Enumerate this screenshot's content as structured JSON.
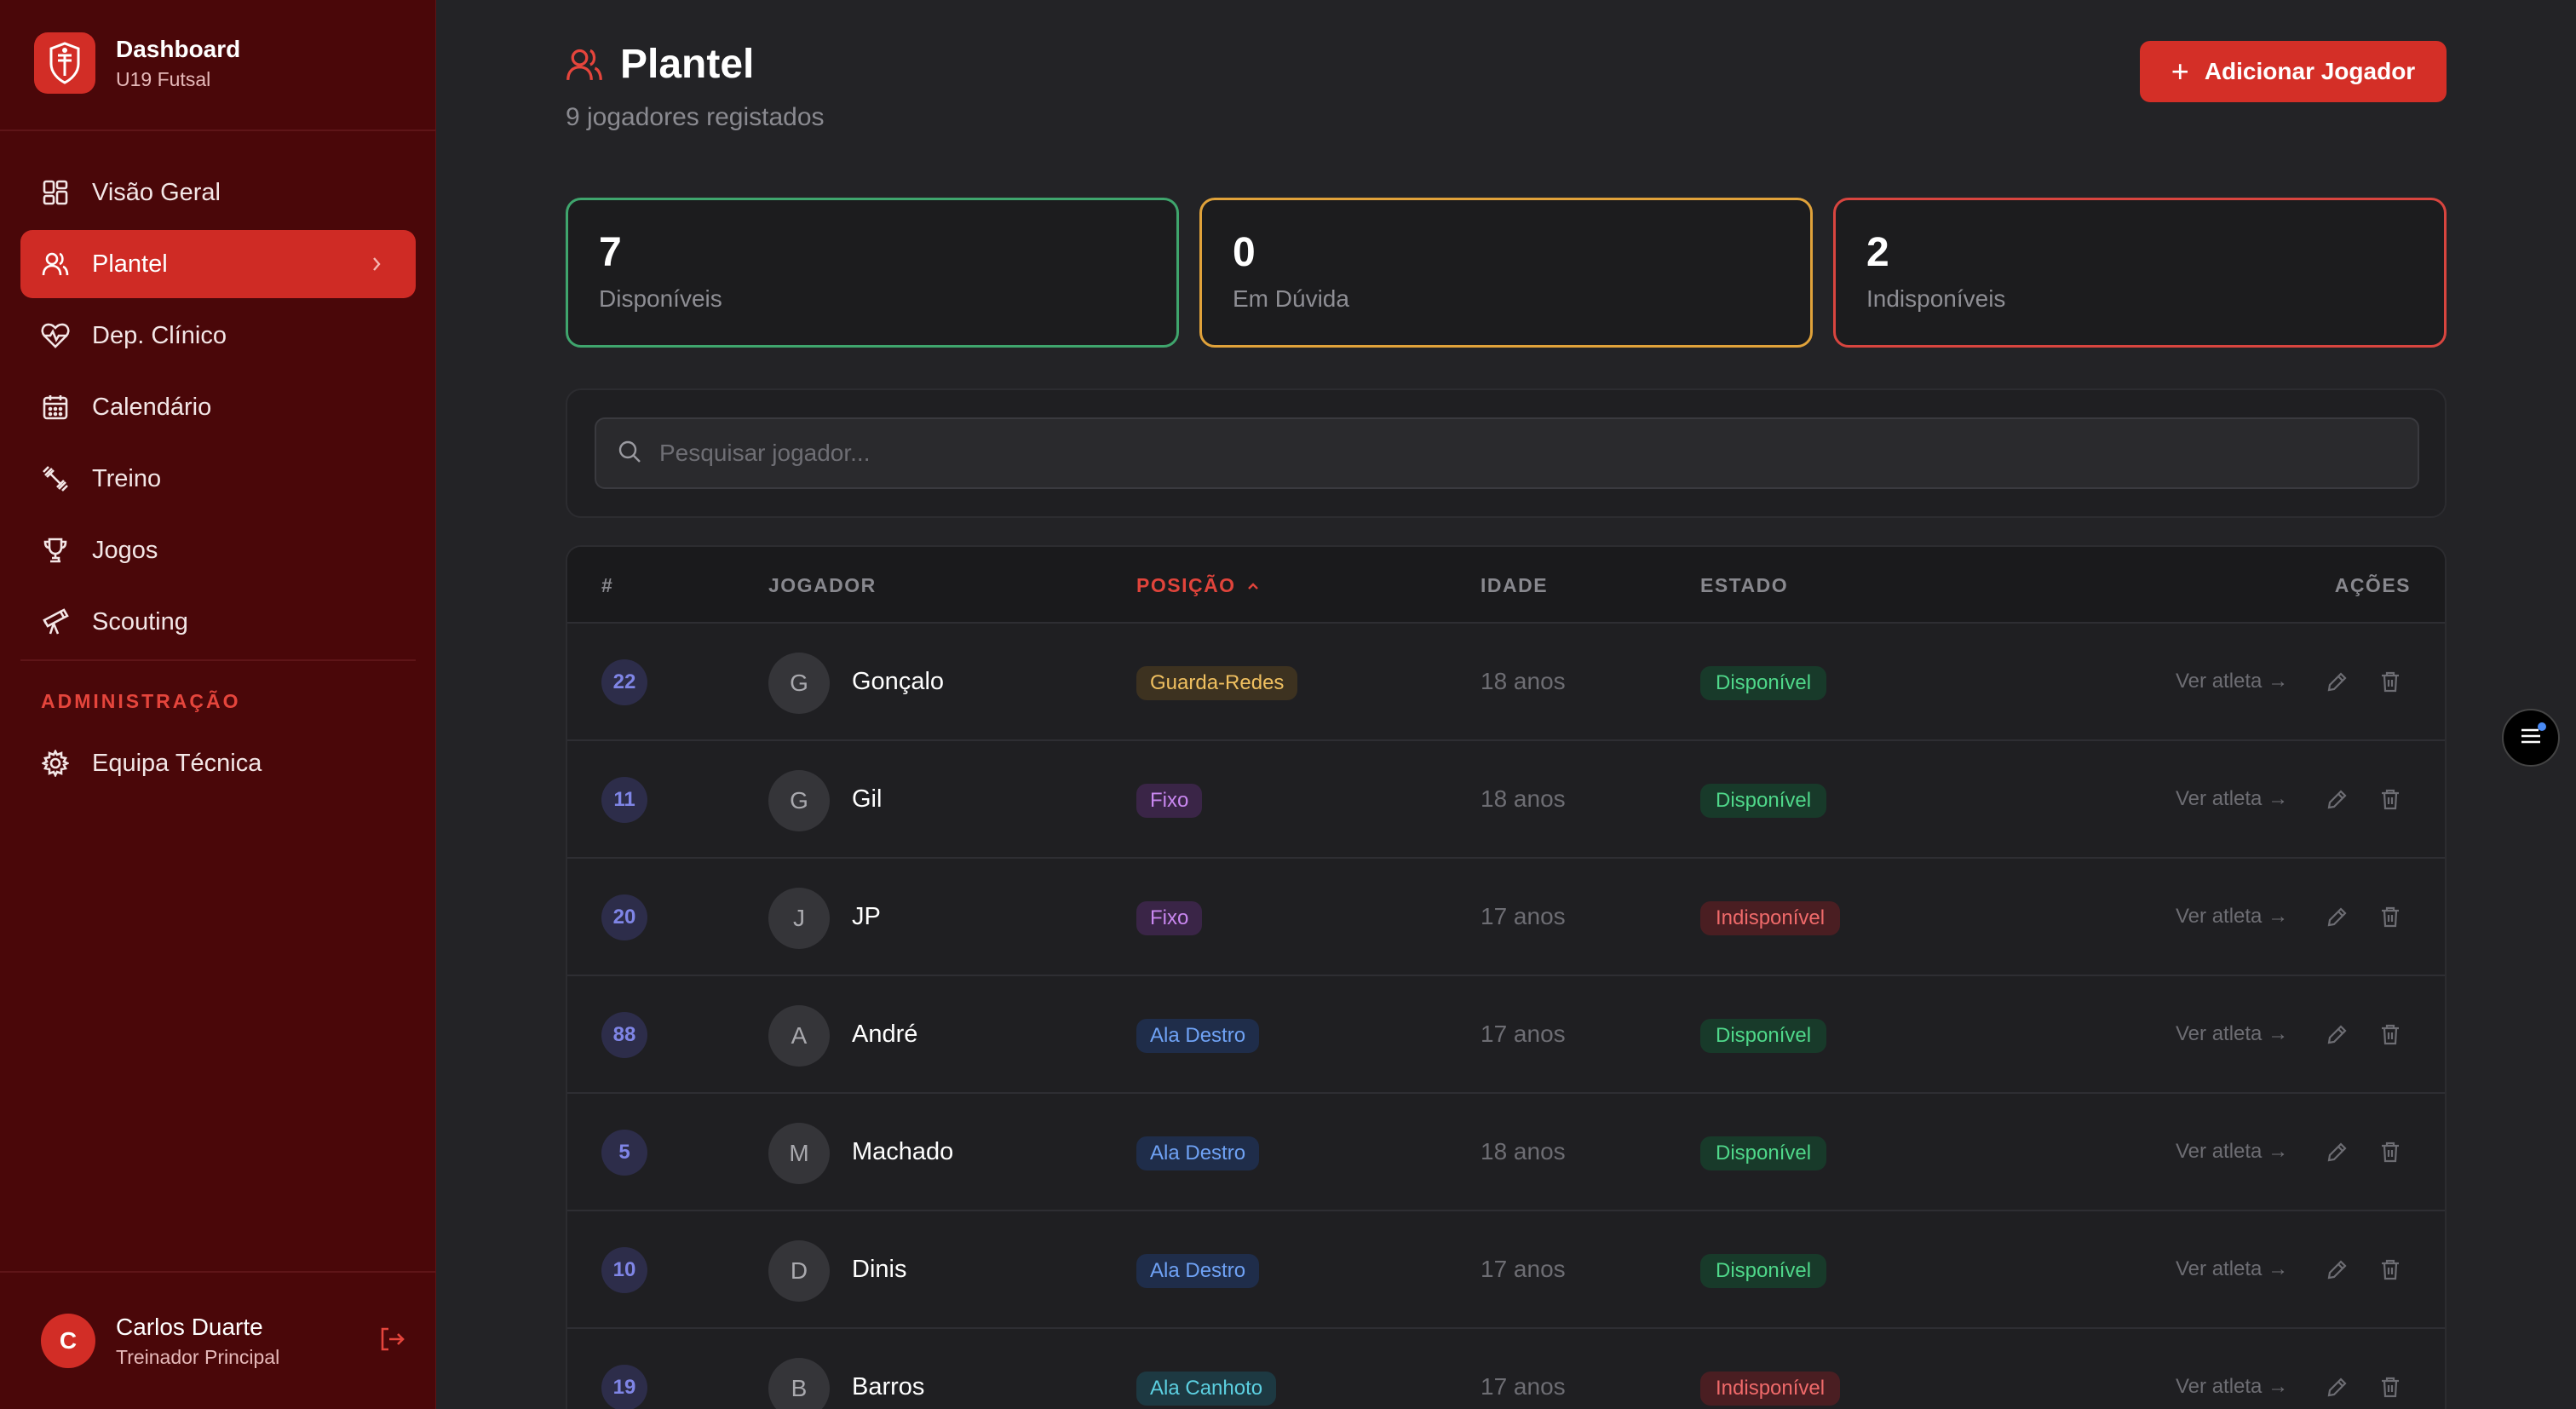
{
  "brand": {
    "title": "Dashboard",
    "subtitle": "U19 Futsal",
    "logo_icon": "club-crest-icon"
  },
  "nav": {
    "items": [
      {
        "label": "Visão Geral",
        "icon": "grid-icon"
      },
      {
        "label": "Plantel",
        "icon": "users-icon",
        "active": true
      },
      {
        "label": "Dep. Clínico",
        "icon": "heart-pulse-icon"
      },
      {
        "label": "Calendário",
        "icon": "calendar-icon"
      },
      {
        "label": "Treino",
        "icon": "dumbbell-icon"
      },
      {
        "label": "Jogos",
        "icon": "trophy-icon"
      },
      {
        "label": "Scouting",
        "icon": "telescope-icon"
      }
    ],
    "admin_label": "ADMINISTRAÇÃO",
    "admin_items": [
      {
        "label": "Equipa Técnica",
        "icon": "gear-icon"
      }
    ]
  },
  "user": {
    "initial": "C",
    "name": "Carlos Duarte",
    "role": "Treinador Principal"
  },
  "page": {
    "title": "Plantel",
    "subtitle": "9 jogadores registados",
    "add_button": "Adicionar Jogador"
  },
  "stats": [
    {
      "value": "7",
      "label": "Disponíveis",
      "color": "#3fa56d"
    },
    {
      "value": "0",
      "label": "Em Dúvida",
      "color": "#e0a23a"
    },
    {
      "value": "2",
      "label": "Indisponíveis",
      "color": "#d8453f"
    }
  ],
  "search": {
    "placeholder": "Pesquisar jogador..."
  },
  "table": {
    "headers": {
      "number": "#",
      "player": "JOGADOR",
      "position": "POSIÇÃO",
      "age": "IDADE",
      "status": "ESTADO",
      "actions": "AÇÕES"
    },
    "view_label": "Ver atleta →",
    "rows": [
      {
        "number": "22",
        "initial": "G",
        "name": "Gonçalo",
        "position": "Guarda-Redes",
        "pos_type": "gk",
        "age": "18 anos",
        "status": "Disponível",
        "status_type": "ok"
      },
      {
        "number": "11",
        "initial": "G",
        "name": "Gil",
        "position": "Fixo",
        "pos_type": "fixo",
        "age": "18 anos",
        "status": "Disponível",
        "status_type": "ok"
      },
      {
        "number": "20",
        "initial": "J",
        "name": "JP",
        "position": "Fixo",
        "pos_type": "fixo",
        "age": "17 anos",
        "status": "Indisponível",
        "status_type": "bad"
      },
      {
        "number": "88",
        "initial": "A",
        "name": "André",
        "position": "Ala Destro",
        "pos_type": "ala-d",
        "age": "17 anos",
        "status": "Disponível",
        "status_type": "ok"
      },
      {
        "number": "5",
        "initial": "M",
        "name": "Machado",
        "position": "Ala Destro",
        "pos_type": "ala-d",
        "age": "18 anos",
        "status": "Disponível",
        "status_type": "ok"
      },
      {
        "number": "10",
        "initial": "D",
        "name": "Dinis",
        "position": "Ala Destro",
        "pos_type": "ala-d",
        "age": "17 anos",
        "status": "Disponível",
        "status_type": "ok"
      },
      {
        "number": "19",
        "initial": "B",
        "name": "Barros",
        "position": "Ala Canhoto",
        "pos_type": "ala-c",
        "age": "17 anos",
        "status": "Indisponível",
        "status_type": "bad"
      }
    ]
  },
  "colors": {
    "accent": "#d42f27",
    "sidebar_bg": "#4a0709",
    "pos_gk_bg": "#3d3220",
    "pos_gk_fg": "#f0c060",
    "pos_fixo_bg": "#3a2547",
    "pos_fixo_fg": "#c987f0",
    "pos_alad_bg": "#1f2d4a",
    "pos_alad_fg": "#6fa2f5",
    "pos_alac_bg": "#1d3942",
    "pos_alac_fg": "#5ccfe0"
  }
}
